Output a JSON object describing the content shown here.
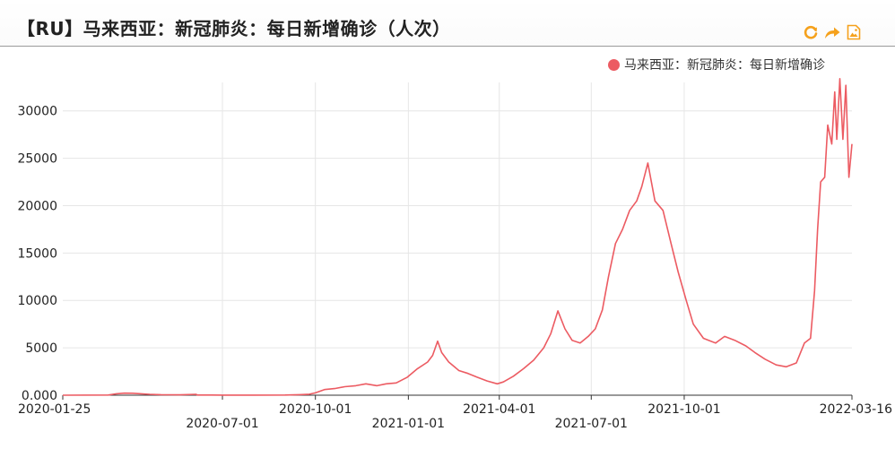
{
  "header": {
    "title": "【RU】马来西亚：新冠肺炎：每日新增确诊（人次）",
    "toolbox": [
      {
        "icon": "refresh-icon",
        "color": "#f5a11c"
      },
      {
        "icon": "share-icon",
        "color": "#f5a11c"
      },
      {
        "icon": "save-image-icon",
        "color": "#f5a11c"
      }
    ]
  },
  "chart_data": {
    "type": "line",
    "title": "【RU】马来西亚：新冠肺炎：每日新增确诊（人次）",
    "xlabel": "",
    "ylabel": "",
    "ylim": [
      0,
      33000
    ],
    "yticks": [
      0,
      5000,
      10000,
      15000,
      20000,
      25000,
      30000
    ],
    "ytick_labels": [
      "0.000",
      "5000",
      "10000",
      "15000",
      "20000",
      "25000",
      "30000"
    ],
    "xlim": [
      "2020-01-25",
      "2022-03-16"
    ],
    "xtick_labels": [
      "2020-01-25",
      "2020-07-01",
      "2020-10-01",
      "2021-01-01",
      "2021-04-01",
      "2021-07-01",
      "2021-10-01",
      "2022-03-16"
    ],
    "grid": true,
    "legend_position": "top-right",
    "series": [
      {
        "name": "马来西亚：新冠肺炎：每日新增确诊",
        "color": "#ec5b62",
        "points": [
          [
            "2020-01-25",
            0
          ],
          [
            "2020-03-10",
            20
          ],
          [
            "2020-03-18",
            150
          ],
          [
            "2020-03-26",
            220
          ],
          [
            "2020-04-03",
            210
          ],
          [
            "2020-04-10",
            160
          ],
          [
            "2020-04-20",
            90
          ],
          [
            "2020-05-01",
            60
          ],
          [
            "2020-05-20",
            40
          ],
          [
            "2020-06-05",
            90
          ],
          [
            "2020-06-06",
            20
          ],
          [
            "2020-06-20",
            20
          ],
          [
            "2020-07-01",
            10
          ],
          [
            "2020-08-01",
            10
          ],
          [
            "2020-09-01",
            20
          ],
          [
            "2020-09-15",
            60
          ],
          [
            "2020-09-25",
            100
          ],
          [
            "2020-10-01",
            250
          ],
          [
            "2020-10-10",
            600
          ],
          [
            "2020-10-20",
            700
          ],
          [
            "2020-10-30",
            900
          ],
          [
            "2020-11-10",
            1000
          ],
          [
            "2020-11-20",
            1200
          ],
          [
            "2020-12-01",
            1000
          ],
          [
            "2020-12-10",
            1200
          ],
          [
            "2020-12-20",
            1300
          ],
          [
            "2020-12-31",
            1900
          ],
          [
            "2021-01-10",
            2800
          ],
          [
            "2021-01-20",
            3500
          ],
          [
            "2021-01-25",
            4200
          ],
          [
            "2021-01-30",
            5700
          ],
          [
            "2021-02-03",
            4500
          ],
          [
            "2021-02-10",
            3500
          ],
          [
            "2021-02-20",
            2600
          ],
          [
            "2021-03-01",
            2300
          ],
          [
            "2021-03-10",
            1900
          ],
          [
            "2021-03-20",
            1500
          ],
          [
            "2021-03-30",
            1200
          ],
          [
            "2021-04-05",
            1400
          ],
          [
            "2021-04-15",
            2000
          ],
          [
            "2021-04-25",
            2800
          ],
          [
            "2021-05-05",
            3700
          ],
          [
            "2021-05-15",
            5000
          ],
          [
            "2021-05-22",
            6500
          ],
          [
            "2021-05-29",
            8900
          ],
          [
            "2021-06-05",
            7000
          ],
          [
            "2021-06-12",
            5800
          ],
          [
            "2021-06-20",
            5500
          ],
          [
            "2021-06-28",
            6200
          ],
          [
            "2021-07-05",
            7000
          ],
          [
            "2021-07-12",
            9000
          ],
          [
            "2021-07-18",
            12500
          ],
          [
            "2021-07-25",
            16000
          ],
          [
            "2021-08-01",
            17500
          ],
          [
            "2021-08-08",
            19500
          ],
          [
            "2021-08-15",
            20500
          ],
          [
            "2021-08-20",
            22000
          ],
          [
            "2021-08-26",
            24500
          ],
          [
            "2021-09-02",
            20500
          ],
          [
            "2021-09-10",
            19500
          ],
          [
            "2021-09-18",
            16000
          ],
          [
            "2021-09-25",
            13000
          ],
          [
            "2021-10-03",
            10000
          ],
          [
            "2021-10-10",
            7500
          ],
          [
            "2021-10-20",
            6000
          ],
          [
            "2021-11-01",
            5500
          ],
          [
            "2021-11-10",
            6200
          ],
          [
            "2021-11-20",
            5800
          ],
          [
            "2021-12-01",
            5200
          ],
          [
            "2021-12-10",
            4500
          ],
          [
            "2021-12-20",
            3800
          ],
          [
            "2021-12-31",
            3200
          ],
          [
            "2022-01-10",
            3000
          ],
          [
            "2022-01-20",
            3400
          ],
          [
            "2022-01-28",
            5500
          ],
          [
            "2022-02-03",
            6000
          ],
          [
            "2022-02-07",
            11000
          ],
          [
            "2022-02-10",
            17500
          ],
          [
            "2022-02-13",
            22500
          ],
          [
            "2022-02-17",
            23000
          ],
          [
            "2022-02-20",
            28500
          ],
          [
            "2022-02-24",
            26500
          ],
          [
            "2022-02-27",
            32000
          ],
          [
            "2022-03-01",
            27000
          ],
          [
            "2022-03-04",
            33400
          ],
          [
            "2022-03-07",
            27000
          ],
          [
            "2022-03-10",
            32700
          ],
          [
            "2022-03-13",
            23000
          ],
          [
            "2022-03-16",
            26500
          ]
        ]
      }
    ]
  }
}
